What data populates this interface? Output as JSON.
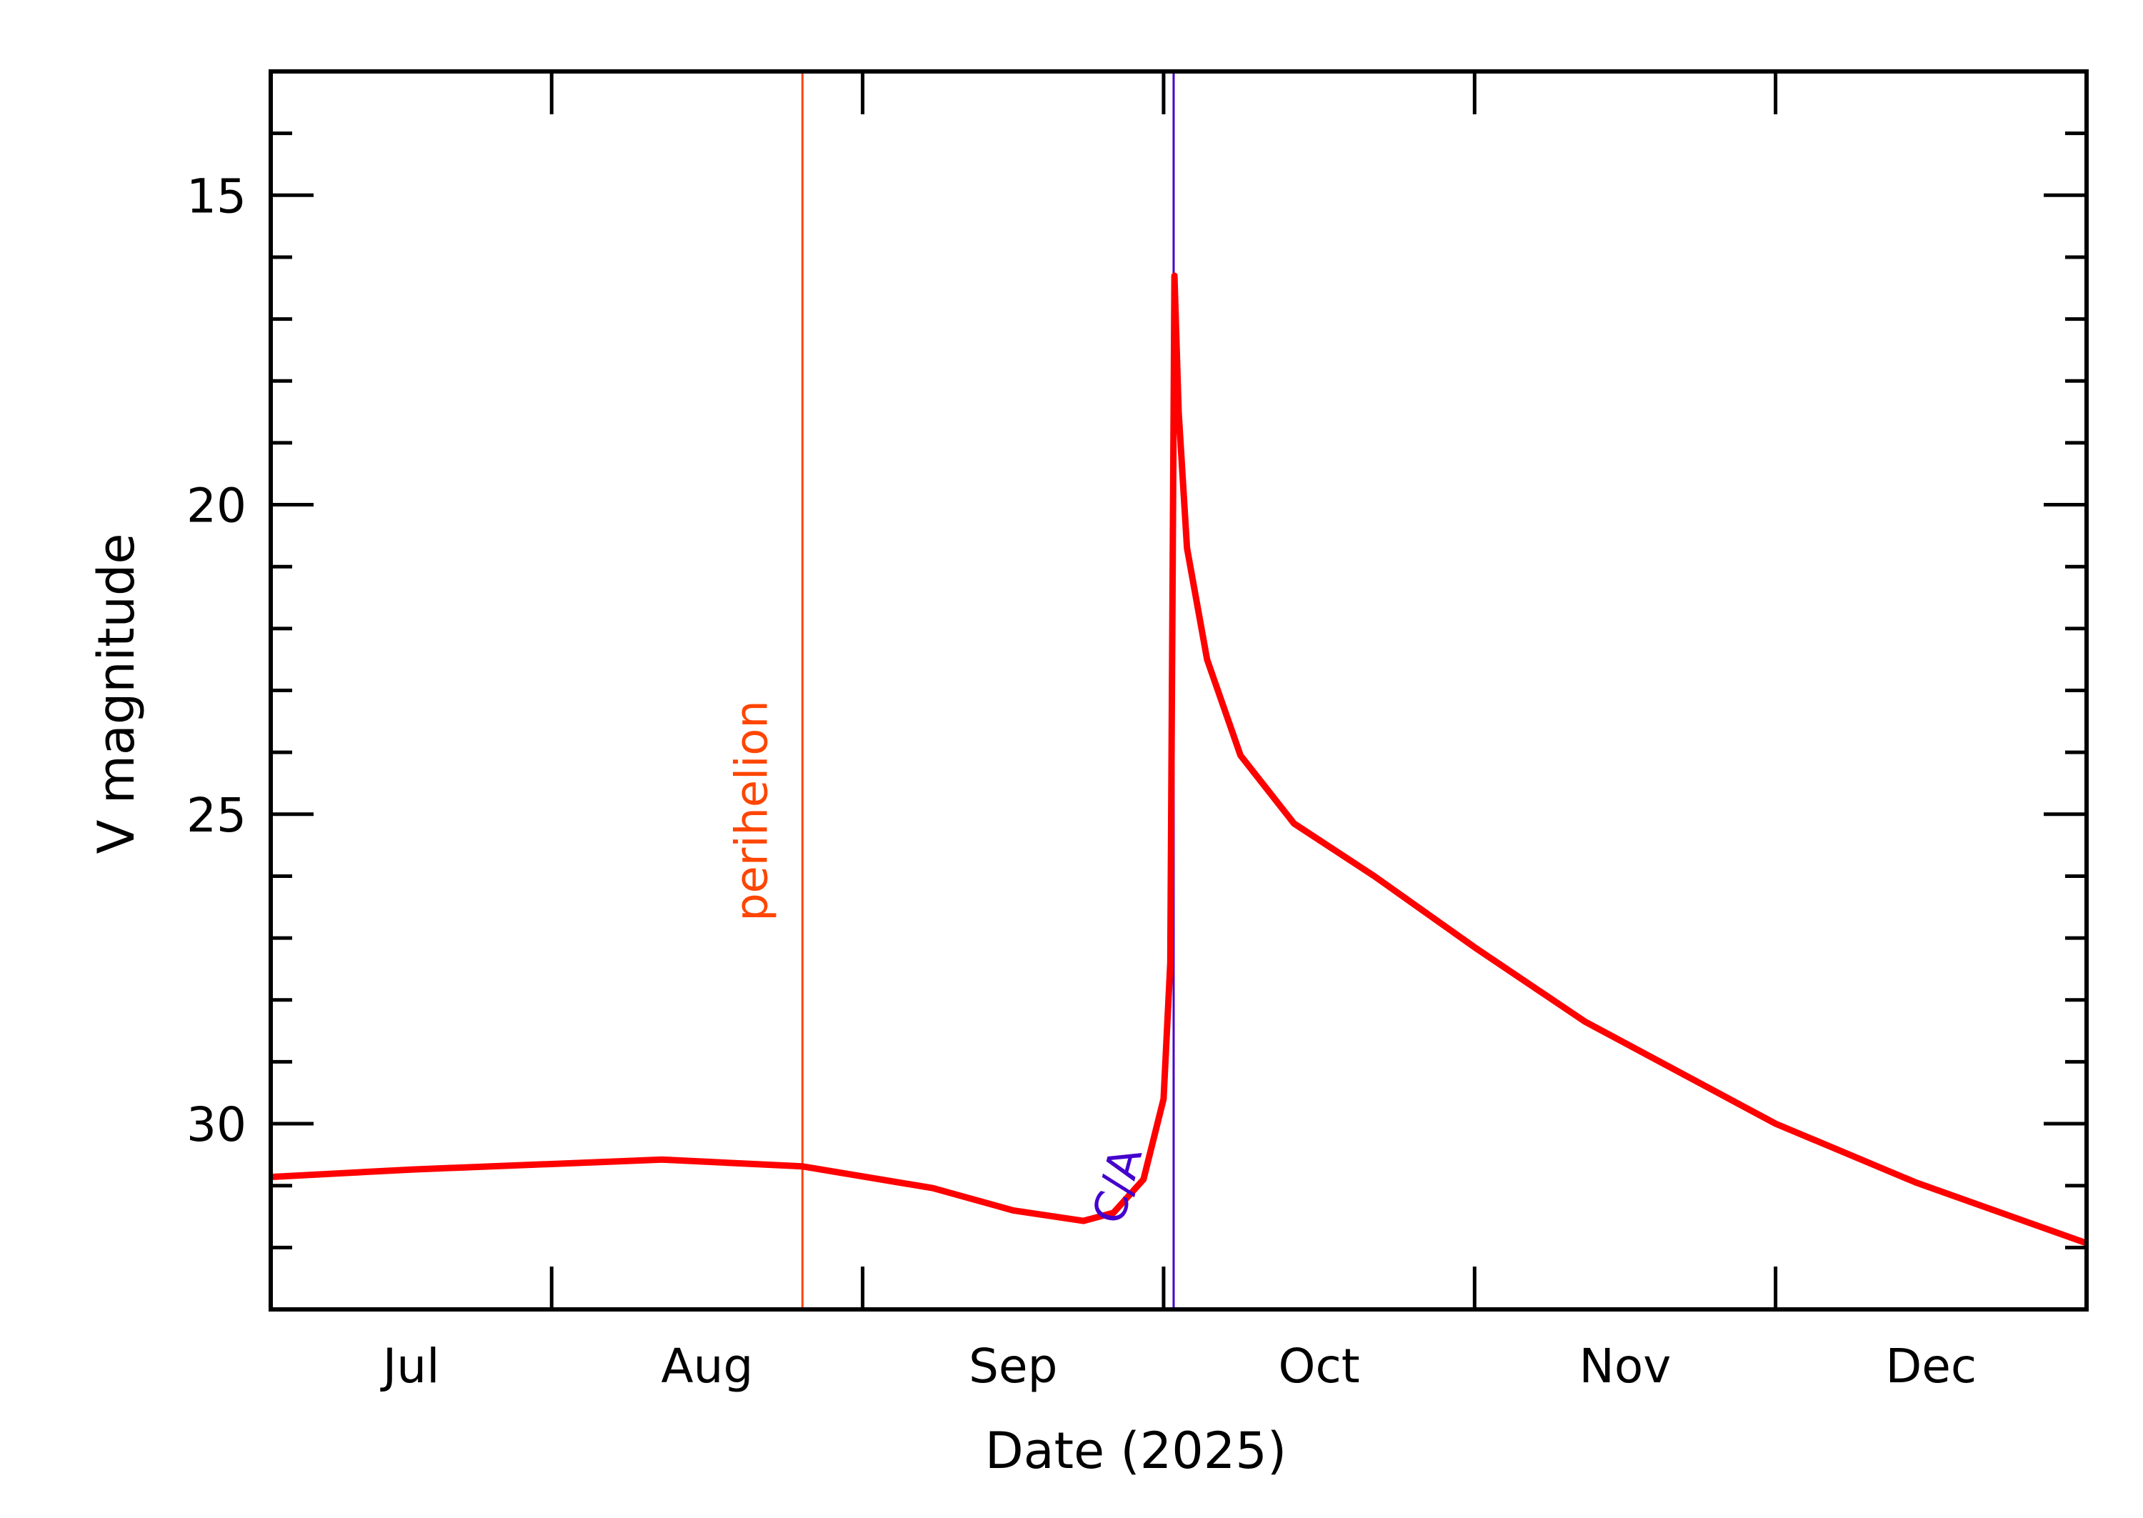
{
  "chart_data": {
    "type": "line",
    "title": "",
    "xlabel": "Date (2025)",
    "ylabel": "V magnitude",
    "xlim": [
      "2025-07-04",
      "2026-01-01"
    ],
    "ylim": [
      33,
      13
    ],
    "y_reversed": true,
    "grid": false,
    "x_ticks": [
      {
        "label": "Jul",
        "start": "2025-07-04",
        "end": "2025-08-01"
      },
      {
        "label": "Aug",
        "start": "2025-08-01",
        "end": "2025-09-01"
      },
      {
        "label": "Sep",
        "start": "2025-09-01",
        "end": "2025-10-01"
      },
      {
        "label": "Oct",
        "start": "2025-10-01",
        "end": "2025-11-01"
      },
      {
        "label": "Nov",
        "start": "2025-11-01",
        "end": "2025-12-01"
      },
      {
        "label": "Dec",
        "start": "2025-12-01",
        "end": "2026-01-01"
      }
    ],
    "y_ticks": [
      "15",
      "20",
      "25",
      "30"
    ],
    "y_tick_values": [
      15,
      20,
      25,
      30
    ],
    "series": [
      {
        "color": "#ff0000",
        "x": [
          "2025-07-04",
          "2025-07-18",
          "2025-08-12",
          "2025-08-26",
          "2025-09-08",
          "2025-09-16",
          "2025-09-23",
          "2025-09-26",
          "2025-09-29",
          "2025-10-01",
          "2025-10-01T16:00",
          "2025-10-01T22:00",
          "2025-10-02T02:00",
          "2025-10-02T12:00",
          "2025-10-03T08:00",
          "2025-10-05T08:00",
          "2025-10-08T16:00",
          "2025-10-14",
          "2025-10-22",
          "2025-11-01",
          "2025-11-12",
          "2025-12-01",
          "2025-12-15",
          "2026-01-01"
        ],
        "y": [
          30.86,
          30.74,
          30.58,
          30.69,
          31.04,
          31.4,
          31.57,
          31.44,
          30.9,
          29.6,
          27.4,
          20.7,
          16.3,
          18.5,
          20.7,
          22.5,
          24.05,
          25.15,
          26.0,
          27.15,
          28.35,
          30.0,
          30.95,
          31.93
        ]
      }
    ],
    "annotations": [
      {
        "label": "perihelion",
        "date": "2025-08-26",
        "color": "#ff4500"
      },
      {
        "label": "C/A",
        "date": "2025-10-02",
        "color": "#4400cc"
      }
    ]
  }
}
